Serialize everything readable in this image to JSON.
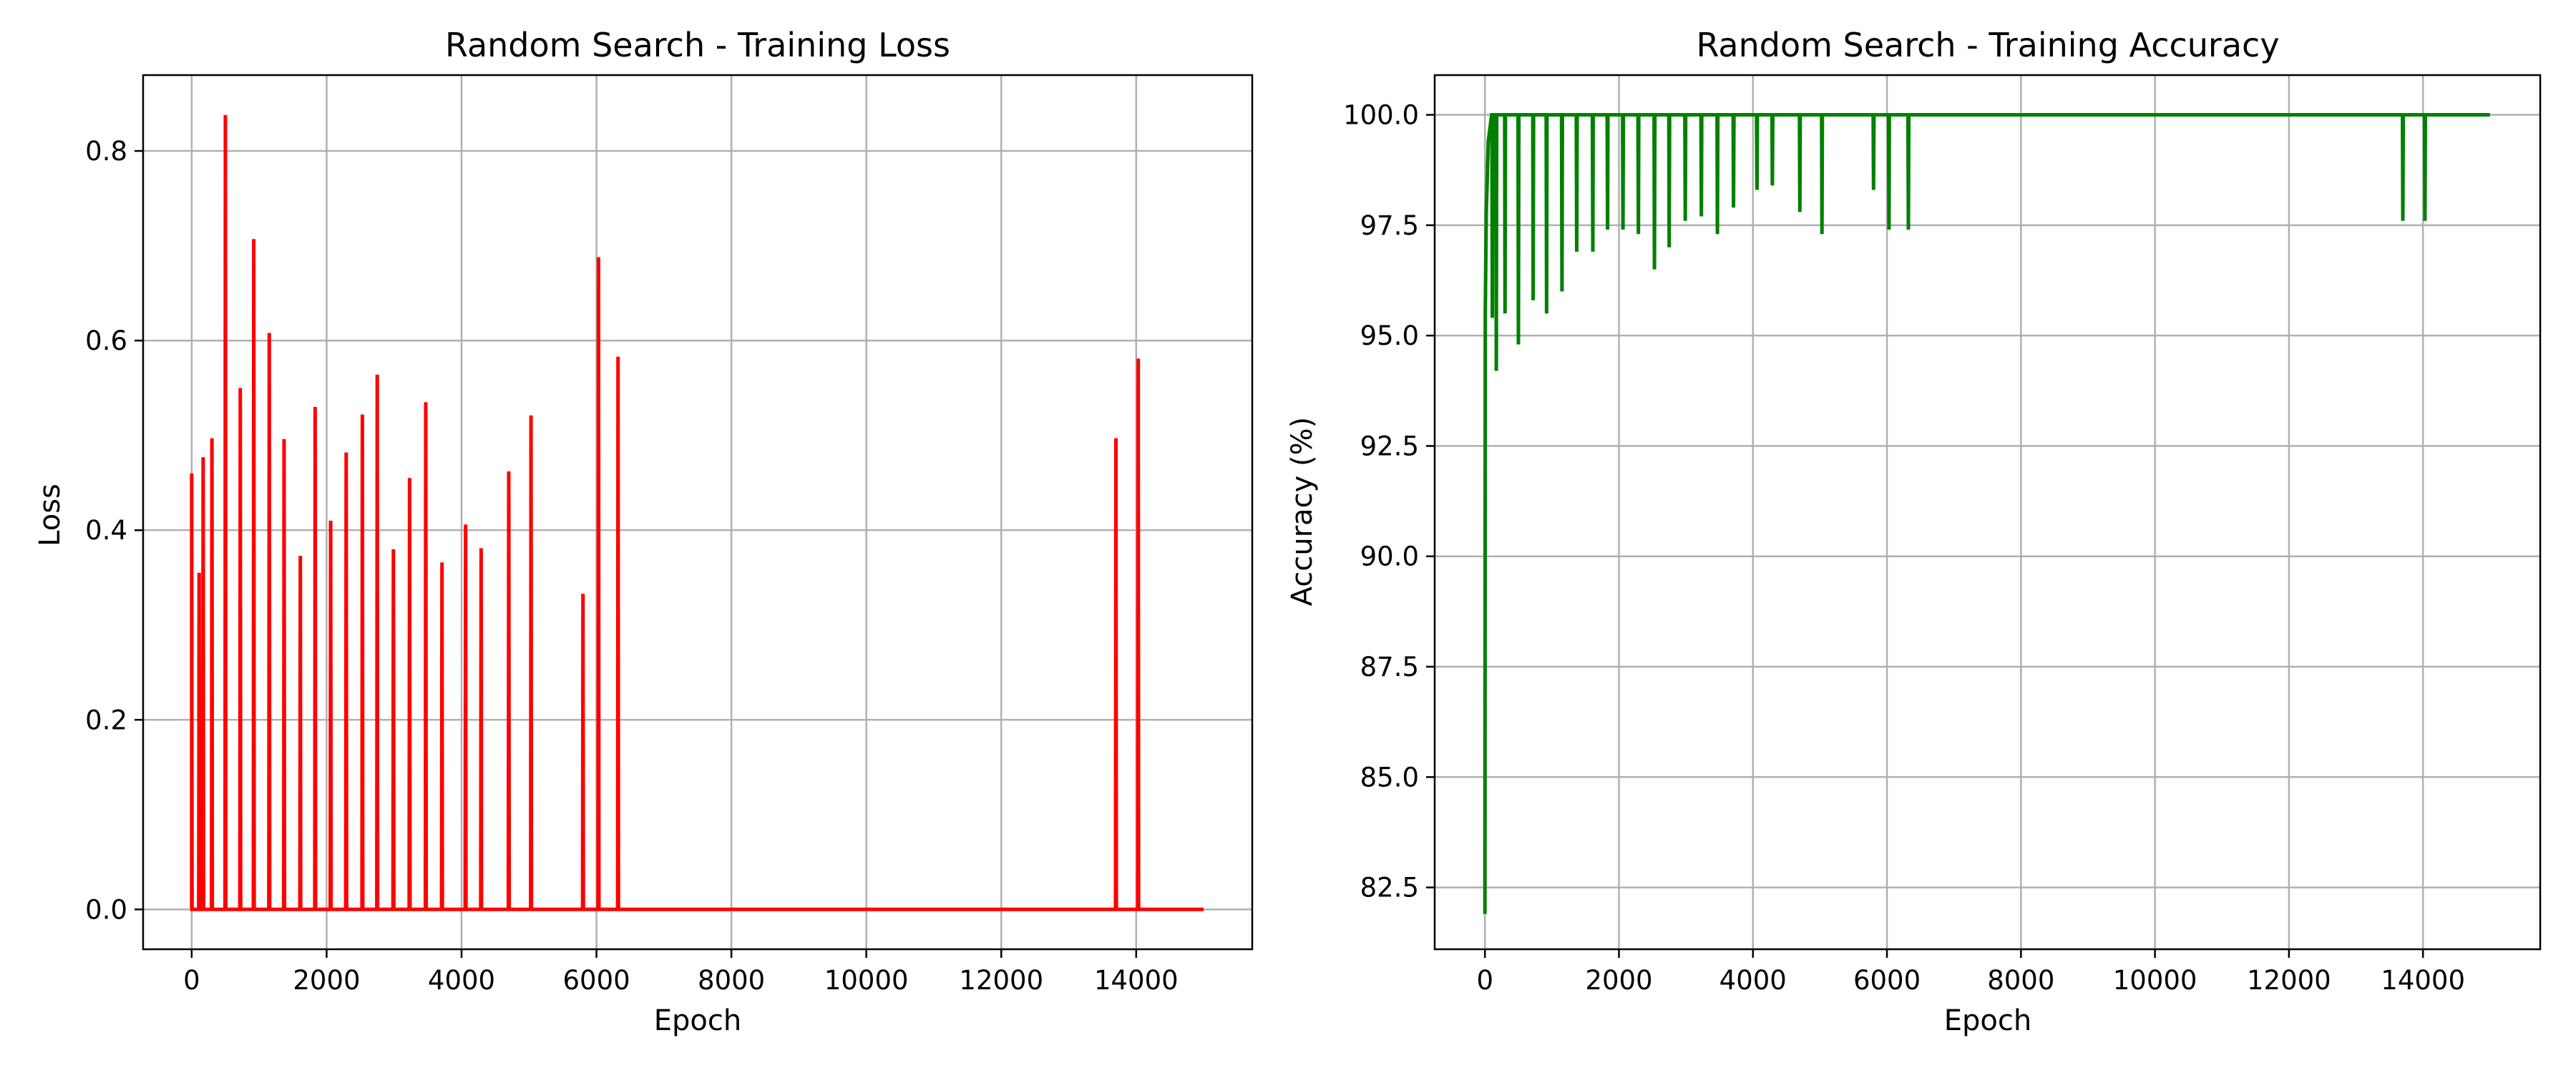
{
  "chart_data": [
    {
      "type": "line",
      "title": "Random Search - Training Loss",
      "xlabel": "Epoch",
      "ylabel": "Loss",
      "xlim": [
        -720,
        15720
      ],
      "ylim": [
        -0.042,
        0.88
      ],
      "xticks": [
        0,
        2000,
        4000,
        6000,
        8000,
        10000,
        12000,
        14000
      ],
      "yticks": [
        0.0,
        0.2,
        0.4,
        0.6,
        0.8
      ],
      "ytick_labels": [
        "0.0",
        "0.2",
        "0.4",
        "0.6",
        "0.8"
      ],
      "grid": true,
      "color": "#ff0000",
      "baseline": 0.0,
      "x_end": 15000,
      "series": [
        {
          "spikes": [
            [
              0,
              0.46
            ],
            [
              110,
              0.355
            ],
            [
              170,
              0.477
            ],
            [
              300,
              0.497
            ],
            [
              500,
              0.838
            ],
            [
              720,
              0.55
            ],
            [
              920,
              0.707
            ],
            [
              1150,
              0.608
            ],
            [
              1370,
              0.496
            ],
            [
              1610,
              0.373
            ],
            [
              1830,
              0.53
            ],
            [
              2060,
              0.41
            ],
            [
              2290,
              0.482
            ],
            [
              2530,
              0.522
            ],
            [
              2750,
              0.564
            ],
            [
              2990,
              0.38
            ],
            [
              3230,
              0.455
            ],
            [
              3470,
              0.535
            ],
            [
              3710,
              0.366
            ],
            [
              4060,
              0.406
            ],
            [
              4290,
              0.381
            ],
            [
              4700,
              0.462
            ],
            [
              5030,
              0.521
            ],
            [
              5800,
              0.333
            ],
            [
              6030,
              0.688
            ],
            [
              6320,
              0.583
            ],
            [
              13700,
              0.497
            ],
            [
              14030,
              0.581
            ]
          ]
        }
      ]
    },
    {
      "type": "line",
      "title": "Random Search - Training Accuracy",
      "xlabel": "Epoch",
      "ylabel": "Accuracy (%)",
      "xlim": [
        -750,
        15750
      ],
      "ylim": [
        81.1,
        100.9
      ],
      "xticks": [
        0,
        2000,
        4000,
        6000,
        8000,
        10000,
        12000,
        14000
      ],
      "yticks": [
        82.5,
        85.0,
        87.5,
        90.0,
        92.5,
        95.0,
        97.5,
        100.0
      ],
      "ytick_labels": [
        "82.5",
        "85.0",
        "87.5",
        "90.0",
        "92.5",
        "95.0",
        "97.5",
        "100.0"
      ],
      "grid": true,
      "color": "#008000",
      "baseline": 100.0,
      "x_end": 15000,
      "series": [
        {
          "start": [
            [
              0,
              81.9
            ],
            [
              5,
              95.5
            ],
            [
              20,
              97.8
            ],
            [
              50,
              99.4
            ],
            [
              100,
              100.0
            ]
          ],
          "dips": [
            [
              110,
              95.4
            ],
            [
              170,
              94.2
            ],
            [
              300,
              95.5
            ],
            [
              500,
              94.8
            ],
            [
              720,
              95.8
            ],
            [
              920,
              95.5
            ],
            [
              1150,
              96.0
            ],
            [
              1370,
              96.9
            ],
            [
              1610,
              96.9
            ],
            [
              1830,
              97.4
            ],
            [
              2060,
              97.4
            ],
            [
              2290,
              97.3
            ],
            [
              2530,
              96.5
            ],
            [
              2750,
              97.0
            ],
            [
              2990,
              97.6
            ],
            [
              3230,
              97.7
            ],
            [
              3470,
              97.3
            ],
            [
              3710,
              97.9
            ],
            [
              4060,
              98.3
            ],
            [
              4290,
              98.4
            ],
            [
              4700,
              97.8
            ],
            [
              5030,
              97.3
            ],
            [
              5800,
              98.3
            ],
            [
              6030,
              97.4
            ],
            [
              6320,
              97.4
            ],
            [
              13700,
              97.6
            ],
            [
              14030,
              97.6
            ]
          ]
        }
      ]
    }
  ]
}
